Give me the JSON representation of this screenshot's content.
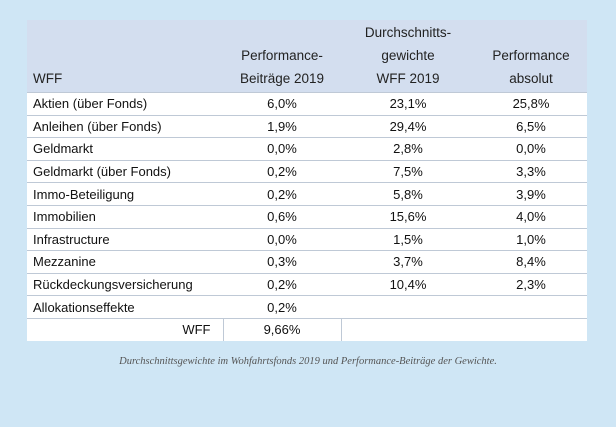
{
  "table": {
    "headers": {
      "col1": "WFF",
      "col2_line1": "Performance-",
      "col2_line2": "Beiträge 2019",
      "col3_line1": "Durchschnitts-",
      "col3_line2": "gewichte",
      "col3_line3": "WFF 2019",
      "col4_line1": "Performance",
      "col4_line2": "absolut"
    },
    "rows": [
      {
        "label": "Aktien (über Fonds)",
        "beitrag": "6,0%",
        "gewicht": "23,1%",
        "absolut": "25,8%"
      },
      {
        "label": "Anleihen (über Fonds)",
        "beitrag": "1,9%",
        "gewicht": "29,4%",
        "absolut": "6,5%"
      },
      {
        "label": "Geldmarkt",
        "beitrag": "0,0%",
        "gewicht": "2,8%",
        "absolut": "0,0%"
      },
      {
        "label": "Geldmarkt (über Fonds)",
        "beitrag": "0,2%",
        "gewicht": "7,5%",
        "absolut": "3,3%"
      },
      {
        "label": "Immo-Beteiligung",
        "beitrag": "0,2%",
        "gewicht": "5,8%",
        "absolut": "3,9%"
      },
      {
        "label": "Immobilien",
        "beitrag": "0,6%",
        "gewicht": "15,6%",
        "absolut": "4,0%"
      },
      {
        "label": "Infrastructure",
        "beitrag": "0,0%",
        "gewicht": "1,5%",
        "absolut": "1,0%"
      },
      {
        "label": "Mezzanine",
        "beitrag": "0,3%",
        "gewicht": "3,7%",
        "absolut": "8,4%"
      },
      {
        "label": "Rückdeckungsversicherung",
        "beitrag": "0,2%",
        "gewicht": "10,4%",
        "absolut": "2,3%"
      },
      {
        "label": "Allokationseffekte",
        "beitrag": "0,2%",
        "gewicht": "",
        "absolut": ""
      }
    ],
    "total": {
      "label": "WFF",
      "beitrag": "9,66%"
    }
  },
  "caption": "Durchschnittsgewichte im Wohfahrtsfonds 2019 und Performance-Beiträge der Gewichte.",
  "colors": {
    "background": "#cfe6f5",
    "header": "#d3deef",
    "table": "#ffffff"
  }
}
